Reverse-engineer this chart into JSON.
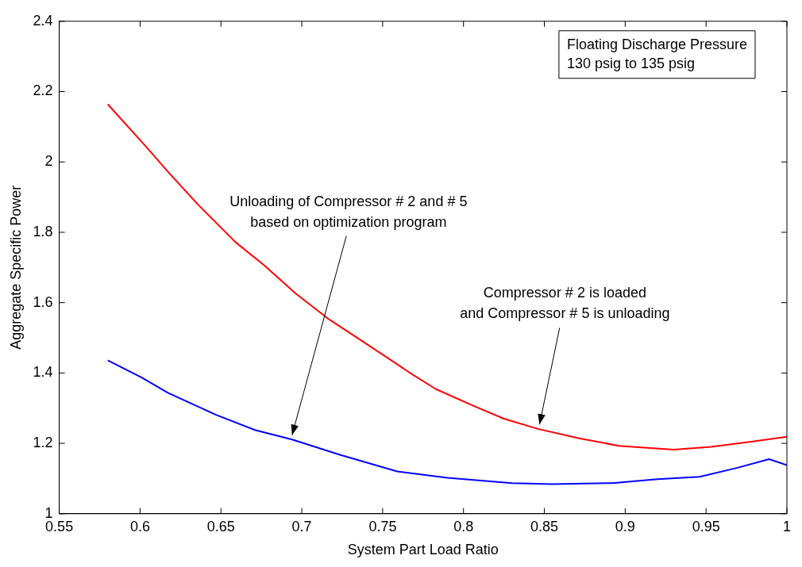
{
  "chart_data": {
    "type": "line",
    "xlabel": "System Part Load Ratio",
    "ylabel": "Aggregate Specific Power",
    "xlim": [
      0.55,
      1
    ],
    "xticks": [
      0.55,
      0.6,
      0.65,
      0.7,
      0.75,
      0.8,
      0.85,
      0.9,
      0.95,
      1
    ],
    "ylim": [
      1,
      2.4
    ],
    "yticks": [
      1,
      1.2,
      1.4,
      1.6,
      1.8,
      2,
      2.2,
      2.4
    ],
    "grid": false,
    "legend": false,
    "marker": "none",
    "line_style": "solid",
    "series": [
      {
        "color": "#ff0000",
        "x": [
          0.58,
          0.603,
          0.618,
          0.636,
          0.659,
          0.677,
          0.696,
          0.717,
          0.734,
          0.757,
          0.766,
          0.783,
          0.806,
          0.825,
          0.846,
          0.871,
          0.896,
          0.93,
          0.953,
          0.977,
          1.0
        ],
        "values": [
          2.164,
          2.047,
          1.968,
          1.878,
          1.772,
          1.705,
          1.627,
          1.552,
          1.501,
          1.431,
          1.403,
          1.354,
          1.307,
          1.27,
          1.241,
          1.215,
          1.193,
          1.182,
          1.19,
          1.204,
          1.219
        ]
      },
      {
        "color": "#0000ff",
        "x": [
          0.58,
          0.601,
          0.617,
          0.647,
          0.671,
          0.694,
          0.724,
          0.759,
          0.79,
          0.83,
          0.855,
          0.892,
          0.92,
          0.946,
          0.969,
          0.989,
          1.0
        ],
        "values": [
          1.436,
          1.387,
          1.344,
          1.281,
          1.238,
          1.211,
          1.167,
          1.12,
          1.102,
          1.087,
          1.084,
          1.087,
          1.098,
          1.105,
          1.13,
          1.155,
          1.138
        ]
      }
    ],
    "annotations": [
      "Floating Discharge Pressure\n130 psig to 135 psig",
      {
        "text": "Unloading of Compressor # 2 and # 5\nbased on optimization program",
        "x": 0.693,
        "y": 1.21
      },
      {
        "text": "Compressor # 2 is loaded\nand Compressor # 5 is unloading",
        "x": 0.846,
        "y": 1.24
      }
    ]
  }
}
